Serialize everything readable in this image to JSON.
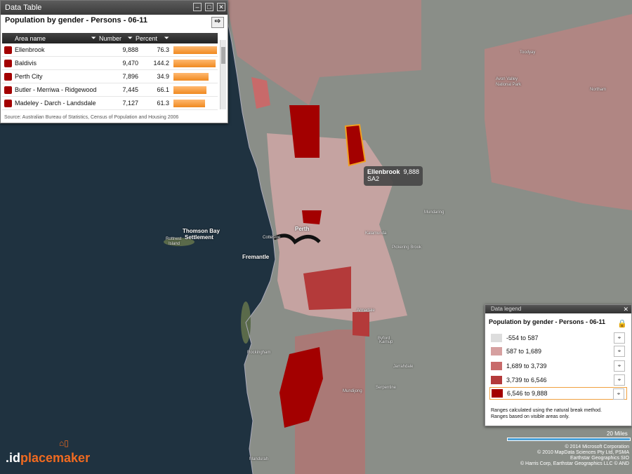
{
  "data_table": {
    "window_title": "Data Table",
    "heading": "Population by gender - Persons - 06-11",
    "columns": [
      "Area name",
      "Number",
      "Percent"
    ],
    "rows": [
      {
        "name": "Ellenbrook",
        "number": "9,888",
        "percent": "76.3"
      },
      {
        "name": "Baldivis",
        "number": "9,470",
        "percent": "144.2"
      },
      {
        "name": "Perth City",
        "number": "7,896",
        "percent": "34.9"
      },
      {
        "name": "Butler - Merriwa - Ridgewood",
        "number": "7,445",
        "percent": "66.1"
      },
      {
        "name": "Madeley - Darch - Landsdale",
        "number": "7,127",
        "percent": "61.3"
      }
    ],
    "source": "Source: Australian Bureau of Statistics, Census of Population and Housing 2006"
  },
  "tooltip": {
    "name": "Ellenbrook",
    "value": "9,888",
    "type": "SA2"
  },
  "legend": {
    "window_title": "Data legend",
    "heading": "Population by gender - Persons - 06-11",
    "items": [
      {
        "label": "-554 to 587",
        "color": "#dddddd"
      },
      {
        "label": "587 to 1,689",
        "color": "#d6a0a0"
      },
      {
        "label": "1,689 to 3,739",
        "color": "#c86a6a"
      },
      {
        "label": "3,739 to 6,546",
        "color": "#b43a3a"
      },
      {
        "label": "6,546 to 9,888",
        "color": "#a30000"
      }
    ],
    "note_line1": "Ranges calculated using the natural break method.",
    "note_line2": "Ranges based on visible areas only."
  },
  "map": {
    "places": [
      "Thomson Bay",
      "Settlement",
      "Rottnest",
      "Island",
      "Fremantle",
      "Cottesloe",
      "Perth",
      "Rockingham",
      "Pickering Brook",
      "Avon Valley",
      "National Park",
      "Northam",
      "Toodyay",
      "Mundaring",
      "Kalamunda",
      "Armadale",
      "Byford",
      "Serpentine",
      "Jarrahdale",
      "Mundijong",
      "Karnup",
      "Mandurah"
    ],
    "scale": "20 Miles",
    "attribution": [
      "© 2014 Microsoft Corporation",
      "© 2010 MapData Sciences Pty Ltd, PSMA",
      "Earthstar Geographics SIO",
      "© Harris Corp, Earthstar Geographics LLC © AND"
    ]
  },
  "logo": {
    "prefix": ".id",
    "name": "placemaker"
  }
}
